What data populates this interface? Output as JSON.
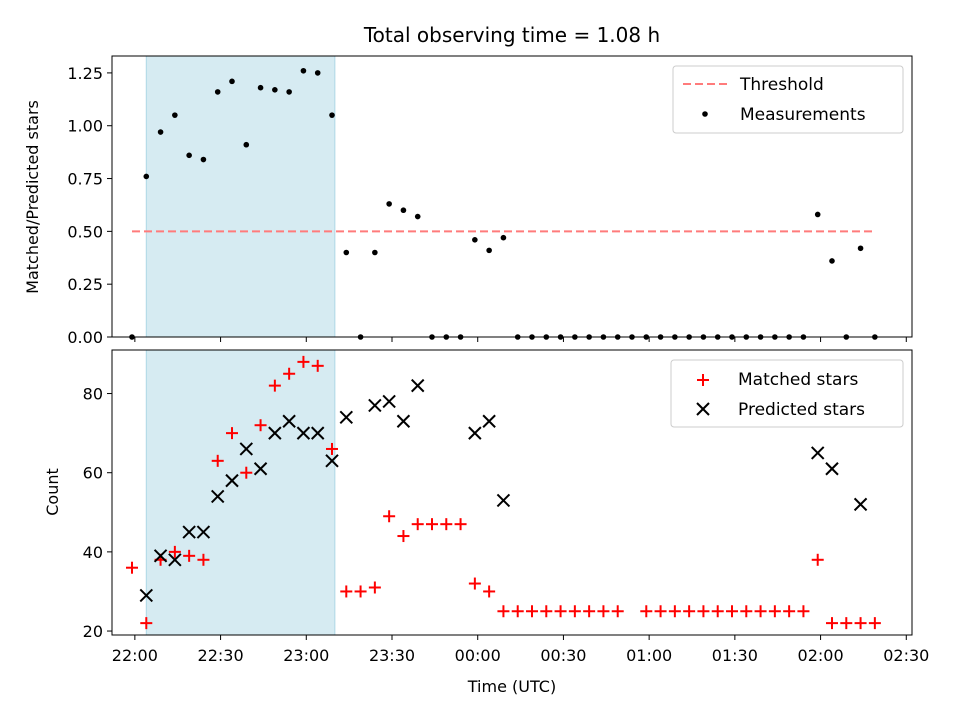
{
  "chart_data": [
    {
      "type": "scatter",
      "title": "Total observing time = 1.08 h",
      "ylabel": "Matched/Predicted stars",
      "xlim": [
        "21:52",
        "02:32"
      ],
      "ylim": [
        0,
        1.33
      ],
      "x_ticks": [
        "22:00",
        "22:30",
        "23:00",
        "23:30",
        "00:00",
        "00:30",
        "01:00",
        "01:30",
        "02:00",
        "02:30"
      ],
      "y_ticks": [
        "0.00",
        "0.25",
        "0.50",
        "0.75",
        "1.00",
        "1.25"
      ],
      "y_tick_values": [
        0,
        0.25,
        0.5,
        0.75,
        1.0,
        1.25
      ],
      "shaded_span": [
        "22:04",
        "23:10"
      ],
      "threshold": {
        "name": "Threshold",
        "value": 0.5,
        "x_start": "21:59",
        "x_end": "02:19",
        "color": "#ff7b7b"
      },
      "series": [
        {
          "name": "Measurements",
          "color": "#000000",
          "points": [
            [
              "21:59",
              0.0
            ],
            [
              "22:04",
              0.76
            ],
            [
              "22:09",
              0.97
            ],
            [
              "22:14",
              1.05
            ],
            [
              "22:19",
              0.86
            ],
            [
              "22:24",
              0.84
            ],
            [
              "22:29",
              1.16
            ],
            [
              "22:34",
              1.21
            ],
            [
              "22:39",
              0.91
            ],
            [
              "22:44",
              1.18
            ],
            [
              "22:49",
              1.17
            ],
            [
              "22:54",
              1.16
            ],
            [
              "22:59",
              1.26
            ],
            [
              "23:04",
              1.25
            ],
            [
              "23:09",
              1.05
            ],
            [
              "23:14",
              0.4
            ],
            [
              "23:19",
              0.0
            ],
            [
              "23:24",
              0.4
            ],
            [
              "23:29",
              0.63
            ],
            [
              "23:34",
              0.6
            ],
            [
              "23:39",
              0.57
            ],
            [
              "23:44",
              0.0
            ],
            [
              "23:49",
              0.0
            ],
            [
              "23:54",
              0.0
            ],
            [
              "23:59",
              0.46
            ],
            [
              "00:04",
              0.41
            ],
            [
              "00:09",
              0.47
            ],
            [
              "00:14",
              0.0
            ],
            [
              "00:19",
              0.0
            ],
            [
              "00:24",
              0.0
            ],
            [
              "00:29",
              0.0
            ],
            [
              "00:34",
              0.0
            ],
            [
              "00:39",
              0.0
            ],
            [
              "00:44",
              0.0
            ],
            [
              "00:49",
              0.0
            ],
            [
              "00:54",
              0.0
            ],
            [
              "00:59",
              0.0
            ],
            [
              "01:04",
              0.0
            ],
            [
              "01:09",
              0.0
            ],
            [
              "01:14",
              0.0
            ],
            [
              "01:19",
              0.0
            ],
            [
              "01:24",
              0.0
            ],
            [
              "01:29",
              0.0
            ],
            [
              "01:34",
              0.0
            ],
            [
              "01:39",
              0.0
            ],
            [
              "01:44",
              0.0
            ],
            [
              "01:49",
              0.0
            ],
            [
              "01:54",
              0.0
            ],
            [
              "01:59",
              0.58
            ],
            [
              "02:04",
              0.36
            ],
            [
              "02:09",
              0.0
            ],
            [
              "02:14",
              0.42
            ],
            [
              "02:19",
              0.0
            ]
          ]
        }
      ],
      "legend": "top-right"
    },
    {
      "type": "scatter",
      "xlabel": "Time (UTC)",
      "ylabel": "Count",
      "xlim": [
        "21:52",
        "02:32"
      ],
      "ylim": [
        19,
        91
      ],
      "x_ticks": [
        "22:00",
        "22:30",
        "23:00",
        "23:30",
        "00:00",
        "00:30",
        "01:00",
        "01:30",
        "02:00",
        "02:30"
      ],
      "y_ticks": [
        "20",
        "40",
        "60",
        "80"
      ],
      "y_tick_values": [
        20,
        40,
        60,
        80
      ],
      "shaded_span": [
        "22:04",
        "23:10"
      ],
      "series": [
        {
          "name": "Matched stars",
          "marker": "plus",
          "color": "#ff0000",
          "points": [
            [
              "21:59",
              36
            ],
            [
              "22:04",
              22
            ],
            [
              "22:09",
              38
            ],
            [
              "22:14",
              40
            ],
            [
              "22:19",
              39
            ],
            [
              "22:24",
              38
            ],
            [
              "22:29",
              63
            ],
            [
              "22:34",
              70
            ],
            [
              "22:39",
              60
            ],
            [
              "22:44",
              72
            ],
            [
              "22:49",
              82
            ],
            [
              "22:54",
              85
            ],
            [
              "22:59",
              88
            ],
            [
              "23:04",
              87
            ],
            [
              "23:09",
              66
            ],
            [
              "23:14",
              30
            ],
            [
              "23:19",
              30
            ],
            [
              "23:24",
              31
            ],
            [
              "23:29",
              49
            ],
            [
              "23:34",
              44
            ],
            [
              "23:39",
              47
            ],
            [
              "23:44",
              47
            ],
            [
              "23:49",
              47
            ],
            [
              "23:54",
              47
            ],
            [
              "23:59",
              32
            ],
            [
              "00:04",
              30
            ],
            [
              "00:09",
              25
            ],
            [
              "00:14",
              25
            ],
            [
              "00:19",
              25
            ],
            [
              "00:24",
              25
            ],
            [
              "00:29",
              25
            ],
            [
              "00:34",
              25
            ],
            [
              "00:39",
              25
            ],
            [
              "00:44",
              25
            ],
            [
              "00:49",
              25
            ],
            [
              "00:59",
              25
            ],
            [
              "01:04",
              25
            ],
            [
              "01:09",
              25
            ],
            [
              "01:14",
              25
            ],
            [
              "01:19",
              25
            ],
            [
              "01:24",
              25
            ],
            [
              "01:29",
              25
            ],
            [
              "01:34",
              25
            ],
            [
              "01:39",
              25
            ],
            [
              "01:44",
              25
            ],
            [
              "01:49",
              25
            ],
            [
              "01:54",
              25
            ],
            [
              "01:59",
              38
            ],
            [
              "02:04",
              22
            ],
            [
              "02:09",
              22
            ],
            [
              "02:14",
              22
            ],
            [
              "02:19",
              22
            ]
          ]
        },
        {
          "name": "Predicted stars",
          "marker": "x",
          "color": "#000000",
          "points": [
            [
              "22:04",
              29
            ],
            [
              "22:09",
              39
            ],
            [
              "22:14",
              38
            ],
            [
              "22:19",
              45
            ],
            [
              "22:24",
              45
            ],
            [
              "22:29",
              54
            ],
            [
              "22:34",
              58
            ],
            [
              "22:39",
              66
            ],
            [
              "22:44",
              61
            ],
            [
              "22:49",
              70
            ],
            [
              "22:54",
              73
            ],
            [
              "22:59",
              70
            ],
            [
              "23:04",
              70
            ],
            [
              "23:09",
              63
            ],
            [
              "23:14",
              74
            ],
            [
              "23:24",
              77
            ],
            [
              "23:29",
              78
            ],
            [
              "23:34",
              73
            ],
            [
              "23:39",
              82
            ],
            [
              "23:59",
              70
            ],
            [
              "00:04",
              73
            ],
            [
              "00:09",
              53
            ],
            [
              "01:59",
              65
            ],
            [
              "02:04",
              61
            ],
            [
              "02:14",
              52
            ]
          ]
        }
      ],
      "legend": "top-right"
    }
  ]
}
